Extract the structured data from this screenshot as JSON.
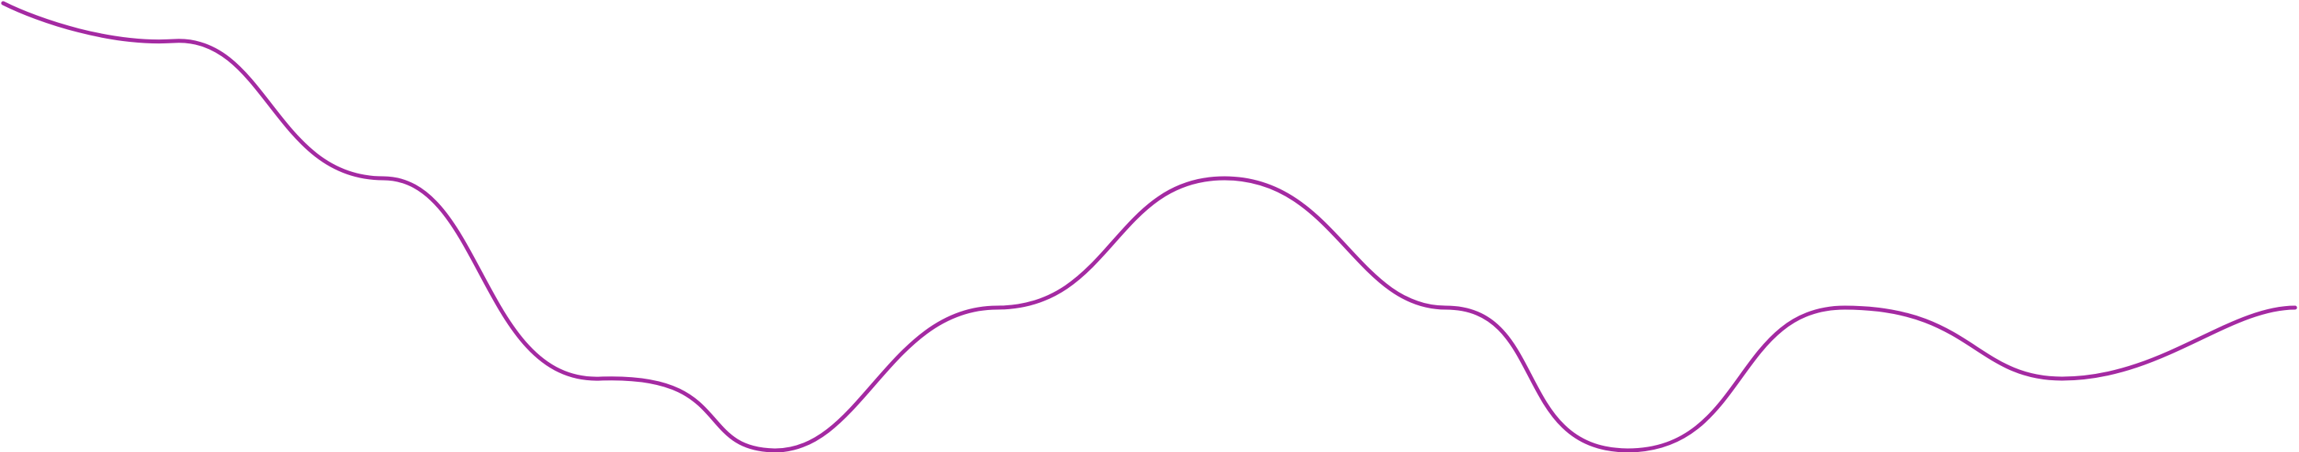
{
  "graphic": {
    "kind": "smooth-wave-line",
    "stroke_color": "#a42aa2",
    "background_color": "#ffffff",
    "fill": "none"
  }
}
